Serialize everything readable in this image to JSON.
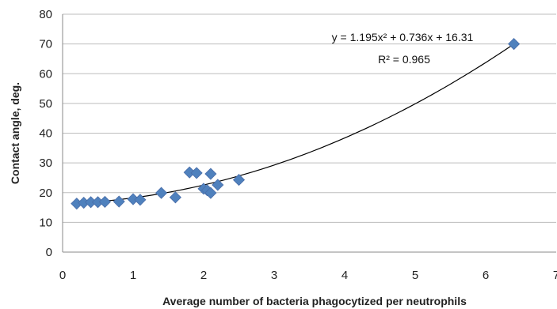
{
  "chart_data": {
    "type": "scatter",
    "xlabel": "Average number of bacteria phagocytized per neutrophils",
    "ylabel": "Contact angle, deg.",
    "xlim": [
      0,
      7
    ],
    "ylim": [
      0,
      80
    ],
    "x_ticks": [
      "0",
      "1",
      "2",
      "3",
      "4",
      "5",
      "6",
      "7"
    ],
    "y_ticks": [
      "0",
      "10",
      "20",
      "30",
      "40",
      "50",
      "60",
      "70",
      "80"
    ],
    "grid": "horizontal",
    "marker": "diamond",
    "marker_color": "#4f81bd",
    "points": [
      {
        "x": 0.2,
        "y": 16.3
      },
      {
        "x": 0.3,
        "y": 16.6
      },
      {
        "x": 0.4,
        "y": 16.8
      },
      {
        "x": 0.5,
        "y": 16.8
      },
      {
        "x": 0.6,
        "y": 16.9
      },
      {
        "x": 0.8,
        "y": 17.0
      },
      {
        "x": 1.0,
        "y": 17.8
      },
      {
        "x": 1.1,
        "y": 17.6
      },
      {
        "x": 1.4,
        "y": 19.9
      },
      {
        "x": 1.6,
        "y": 18.4
      },
      {
        "x": 1.8,
        "y": 26.8
      },
      {
        "x": 1.9,
        "y": 26.6
      },
      {
        "x": 2.0,
        "y": 21.3
      },
      {
        "x": 2.05,
        "y": 20.8
      },
      {
        "x": 2.1,
        "y": 26.3
      },
      {
        "x": 2.1,
        "y": 19.9
      },
      {
        "x": 2.2,
        "y": 22.6
      },
      {
        "x": 2.5,
        "y": 24.3
      },
      {
        "x": 6.4,
        "y": 70.0
      }
    ],
    "trendline": {
      "type": "polynomial",
      "coefficients": [
        1.195,
        0.736,
        16.31
      ],
      "x_range": [
        0.2,
        6.4
      ],
      "equation": "y = 1.195x² + 0.736x + 16.31",
      "r_squared": "R² = 0.965"
    }
  }
}
